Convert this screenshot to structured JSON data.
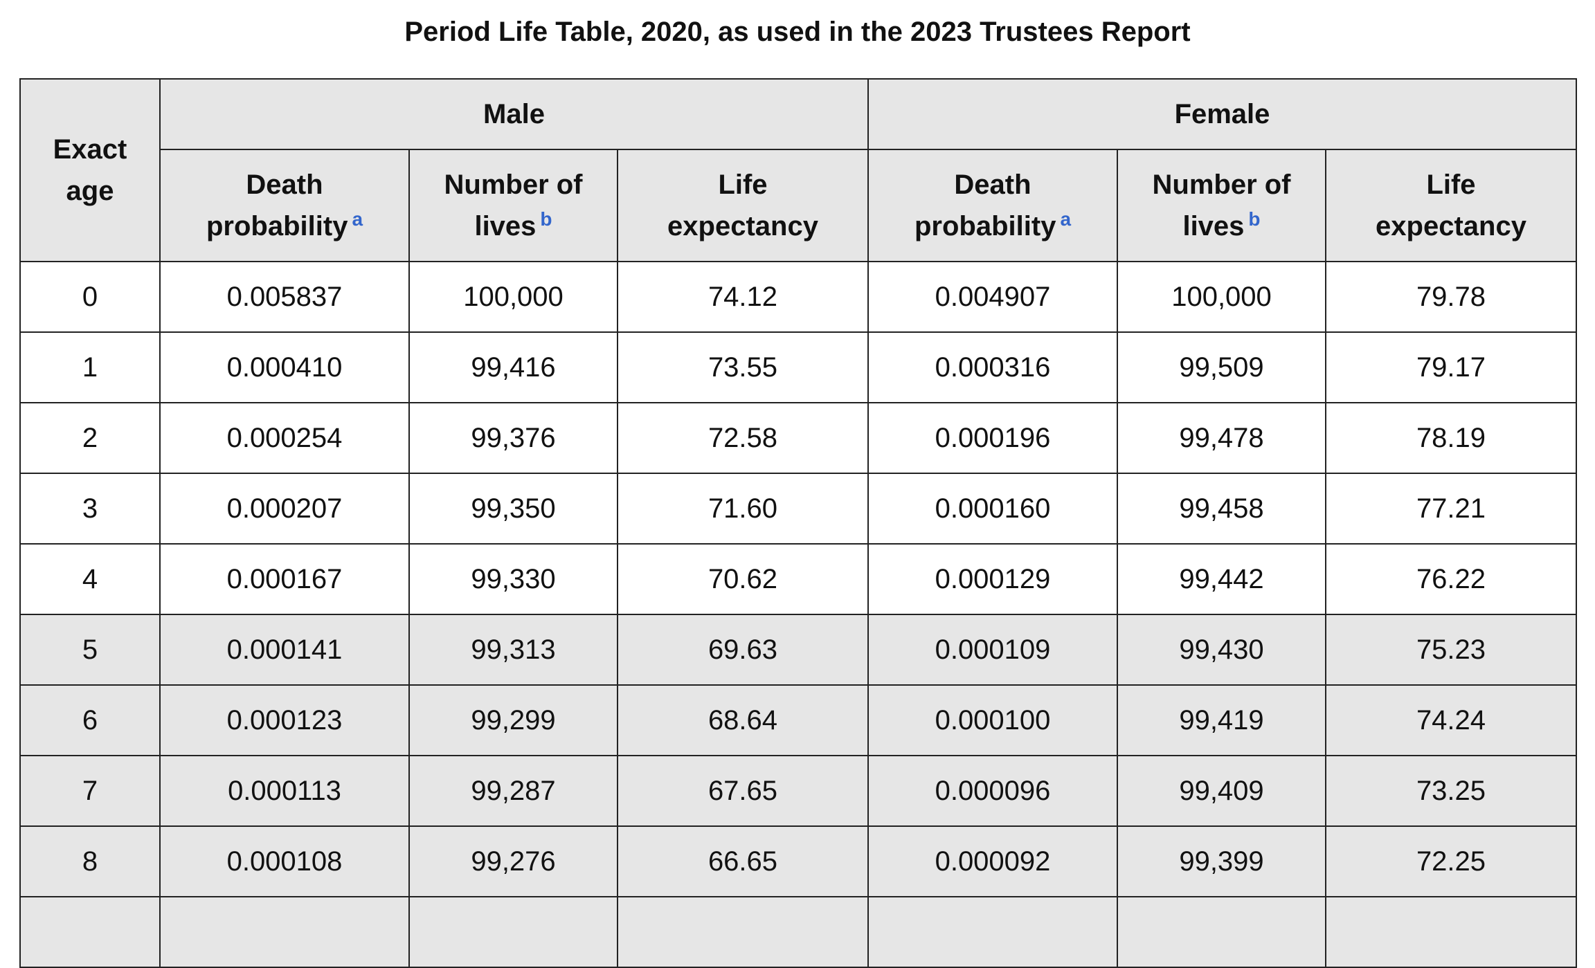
{
  "title": "Period Life Table, 2020, as used in the 2023 Trustees Report",
  "headers": {
    "age_line1": "Exact",
    "age_line2": "age",
    "male": "Male",
    "female": "Female",
    "male_cols": {
      "death_line1": "Death",
      "death_line2": "probability",
      "death_note": "a",
      "lives_line1": "Number of",
      "lives_line2": "lives",
      "lives_note": "b",
      "life_line1": "Life",
      "life_line2": "expectancy"
    },
    "female_cols": {
      "death_line1": "Death",
      "death_line2": "probability",
      "death_note": "a",
      "lives_line1": "Number of",
      "lives_line2": "lives",
      "lives_note": "b",
      "life_line1": "Life",
      "life_line2": "expectancy"
    }
  },
  "rows": [
    {
      "age": "0",
      "m_death": "0.005837",
      "m_lives": "100,000",
      "m_life": "74.12",
      "f_death": "0.004907",
      "f_lives": "100,000",
      "f_life": "79.78",
      "shaded": false
    },
    {
      "age": "1",
      "m_death": "0.000410",
      "m_lives": "99,416",
      "m_life": "73.55",
      "f_death": "0.000316",
      "f_lives": "99,509",
      "f_life": "79.17",
      "shaded": false
    },
    {
      "age": "2",
      "m_death": "0.000254",
      "m_lives": "99,376",
      "m_life": "72.58",
      "f_death": "0.000196",
      "f_lives": "99,478",
      "f_life": "78.19",
      "shaded": false
    },
    {
      "age": "3",
      "m_death": "0.000207",
      "m_lives": "99,350",
      "m_life": "71.60",
      "f_death": "0.000160",
      "f_lives": "99,458",
      "f_life": "77.21",
      "shaded": false
    },
    {
      "age": "4",
      "m_death": "0.000167",
      "m_lives": "99,330",
      "m_life": "70.62",
      "f_death": "0.000129",
      "f_lives": "99,442",
      "f_life": "76.22",
      "shaded": false
    },
    {
      "age": "5",
      "m_death": "0.000141",
      "m_lives": "99,313",
      "m_life": "69.63",
      "f_death": "0.000109",
      "f_lives": "99,430",
      "f_life": "75.23",
      "shaded": true
    },
    {
      "age": "6",
      "m_death": "0.000123",
      "m_lives": "99,299",
      "m_life": "68.64",
      "f_death": "0.000100",
      "f_lives": "99,419",
      "f_life": "74.24",
      "shaded": true
    },
    {
      "age": "7",
      "m_death": "0.000113",
      "m_lives": "99,287",
      "m_life": "67.65",
      "f_death": "0.000096",
      "f_lives": "99,409",
      "f_life": "73.25",
      "shaded": true
    },
    {
      "age": "8",
      "m_death": "0.000108",
      "m_lives": "99,276",
      "m_life": "66.65",
      "f_death": "0.000092",
      "f_lives": "99,399",
      "f_life": "72.25",
      "shaded": true
    },
    {
      "age": "",
      "m_death": "",
      "m_lives": "",
      "m_life": "",
      "f_death": "",
      "f_lives": "",
      "f_life": "",
      "shaded": true
    }
  ],
  "colors": {
    "header_bg": "#e6e6e6",
    "shaded_row_bg": "#e6e6e6",
    "border": "#222222",
    "footnote_link": "#3366cc"
  }
}
